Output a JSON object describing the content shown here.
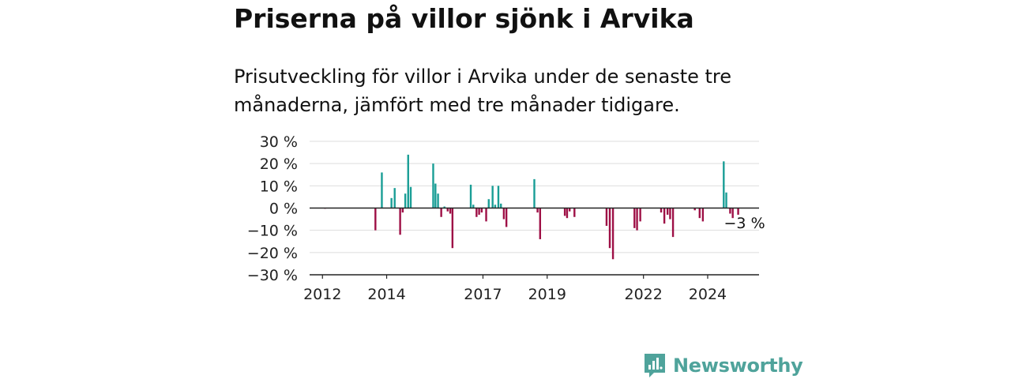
{
  "title": "Priserna på villor sjönk i Arvika",
  "subtitle": "Prisutveckling för villor i Arvika under de senaste tre månaderna, jämfört med tre månader tidigare.",
  "brand": {
    "name": "Newsworthy"
  },
  "colors": {
    "positive": "#1a9e96",
    "negative": "#9e1046",
    "axis": "#222222",
    "grid": "#dddddd"
  },
  "chart_data": {
    "type": "bar",
    "ylim": [
      -30,
      30
    ],
    "yticks": [
      30,
      20,
      10,
      0,
      -10,
      -20,
      -30
    ],
    "ytick_labels": [
      "30 %",
      "20 %",
      "10 %",
      "0 %",
      "−10 %",
      "−20 %",
      "−30 %"
    ],
    "xlim": [
      2011.6,
      2025.6
    ],
    "xticks": [
      2012,
      2014,
      2017,
      2019,
      2022,
      2024
    ],
    "xtick_labels": [
      "2012",
      "2014",
      "2017",
      "2019",
      "2022",
      "2024"
    ],
    "grid": true,
    "last_value_label": "−3 %",
    "points": [
      {
        "x": 2012.08,
        "y": -0.3
      },
      {
        "x": 2013.65,
        "y": -10
      },
      {
        "x": 2013.85,
        "y": 16
      },
      {
        "x": 2014.15,
        "y": 4.5
      },
      {
        "x": 2014.25,
        "y": 9
      },
      {
        "x": 2014.42,
        "y": -12
      },
      {
        "x": 2014.5,
        "y": -2
      },
      {
        "x": 2014.58,
        "y": 6.5
      },
      {
        "x": 2014.67,
        "y": 24
      },
      {
        "x": 2014.75,
        "y": 9.5
      },
      {
        "x": 2015.45,
        "y": 20
      },
      {
        "x": 2015.52,
        "y": 11
      },
      {
        "x": 2015.6,
        "y": 6.5
      },
      {
        "x": 2015.7,
        "y": -4
      },
      {
        "x": 2015.8,
        "y": 0.7
      },
      {
        "x": 2015.9,
        "y": -1.5
      },
      {
        "x": 2015.98,
        "y": -2.5
      },
      {
        "x": 2016.05,
        "y": -18
      },
      {
        "x": 2016.62,
        "y": 10.5
      },
      {
        "x": 2016.7,
        "y": 1.5
      },
      {
        "x": 2016.8,
        "y": -4
      },
      {
        "x": 2016.88,
        "y": -3
      },
      {
        "x": 2016.96,
        "y": -2
      },
      {
        "x": 2017.1,
        "y": -6
      },
      {
        "x": 2017.18,
        "y": 4
      },
      {
        "x": 2017.3,
        "y": 10
      },
      {
        "x": 2017.38,
        "y": 1.5
      },
      {
        "x": 2017.48,
        "y": 10
      },
      {
        "x": 2017.56,
        "y": 2
      },
      {
        "x": 2017.65,
        "y": -5
      },
      {
        "x": 2017.73,
        "y": -8.5
      },
      {
        "x": 2018.6,
        "y": 13
      },
      {
        "x": 2018.7,
        "y": -2
      },
      {
        "x": 2018.78,
        "y": -14
      },
      {
        "x": 2019.55,
        "y": -3.5
      },
      {
        "x": 2019.62,
        "y": -4.5
      },
      {
        "x": 2019.7,
        "y": -1.5
      },
      {
        "x": 2019.85,
        "y": -4
      },
      {
        "x": 2020.85,
        "y": -8
      },
      {
        "x": 2020.95,
        "y": -18
      },
      {
        "x": 2021.05,
        "y": -23
      },
      {
        "x": 2021.72,
        "y": -9
      },
      {
        "x": 2021.8,
        "y": -10
      },
      {
        "x": 2021.9,
        "y": -6
      },
      {
        "x": 2022.55,
        "y": -2
      },
      {
        "x": 2022.65,
        "y": -7
      },
      {
        "x": 2022.75,
        "y": -3
      },
      {
        "x": 2022.83,
        "y": -5
      },
      {
        "x": 2022.92,
        "y": -13
      },
      {
        "x": 2023.6,
        "y": -1
      },
      {
        "x": 2023.75,
        "y": -4.5
      },
      {
        "x": 2023.85,
        "y": -6
      },
      {
        "x": 2024.5,
        "y": 21
      },
      {
        "x": 2024.58,
        "y": 7
      },
      {
        "x": 2024.7,
        "y": -2.5
      },
      {
        "x": 2024.78,
        "y": -4.5
      },
      {
        "x": 2024.95,
        "y": -3
      }
    ]
  }
}
